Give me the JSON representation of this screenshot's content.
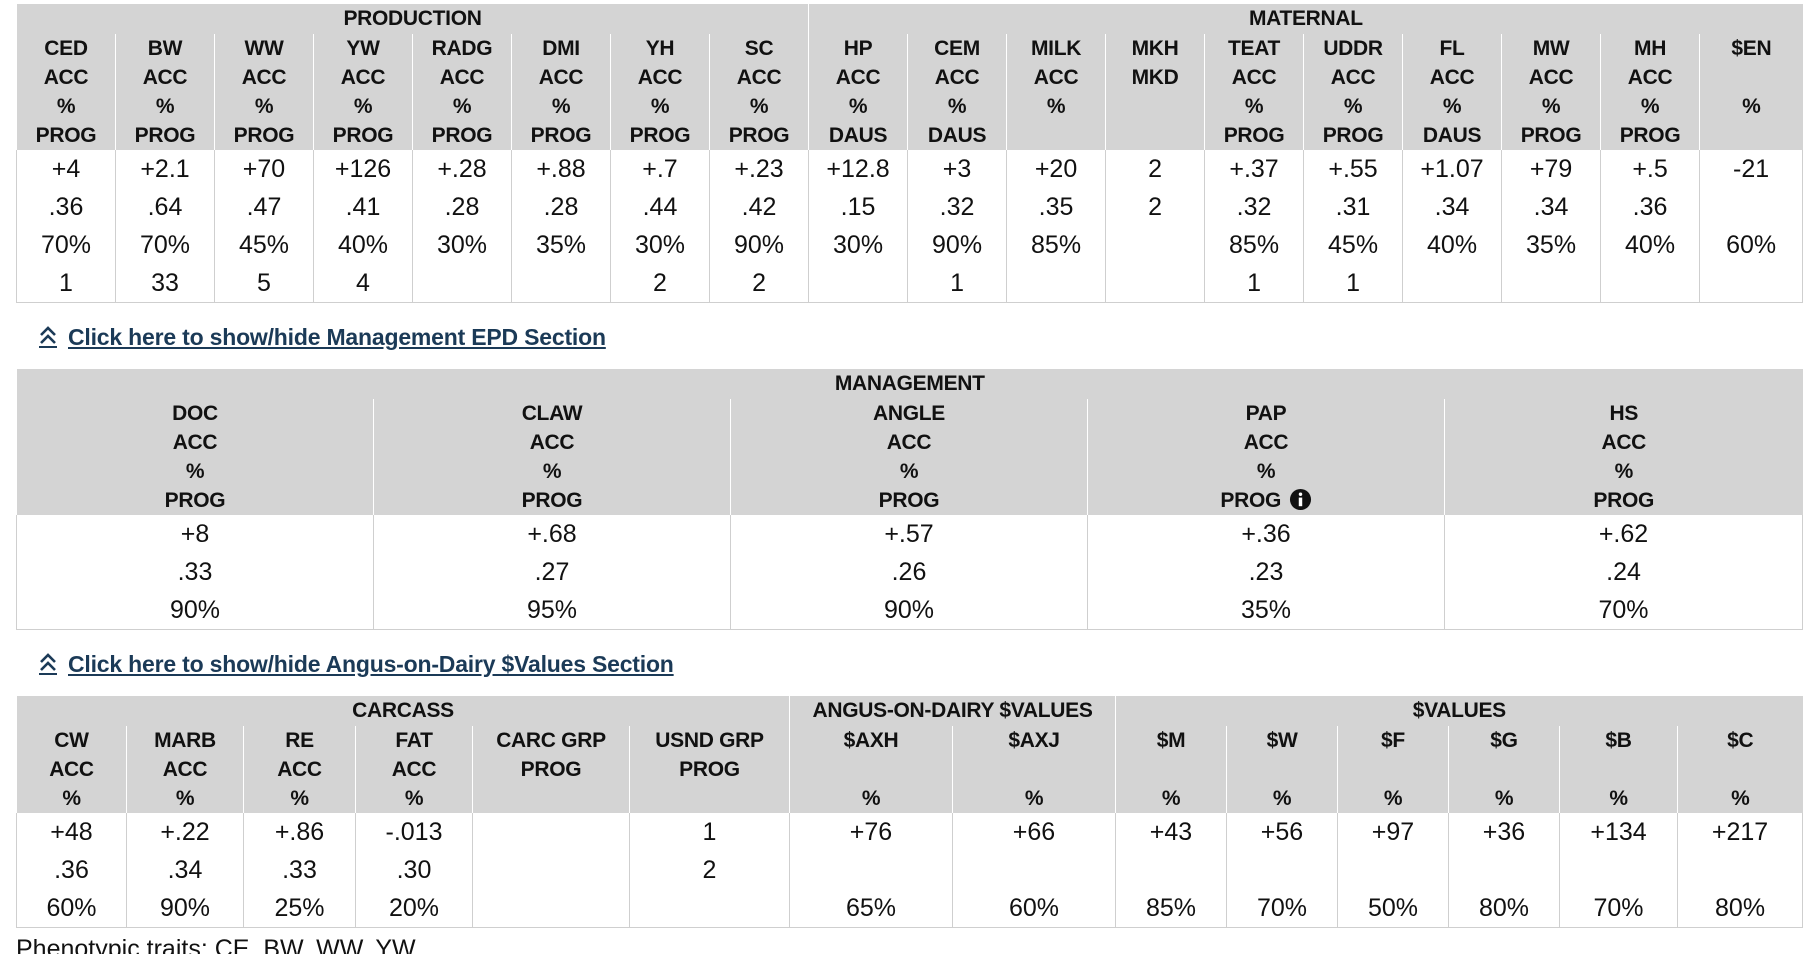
{
  "sections": {
    "epd": {
      "groups": [
        {
          "label": "PRODUCTION",
          "span": 8
        },
        {
          "label": "MATERNAL",
          "span": 10
        }
      ],
      "columns": [
        {
          "h": [
            "CED",
            "ACC",
            "%",
            "PROG"
          ],
          "v": [
            "+4",
            ".36",
            "70%",
            "1"
          ]
        },
        {
          "h": [
            "BW",
            "ACC",
            "%",
            "PROG"
          ],
          "v": [
            "+2.1",
            ".64",
            "70%",
            "33"
          ]
        },
        {
          "h": [
            "WW",
            "ACC",
            "%",
            "PROG"
          ],
          "v": [
            "+70",
            ".47",
            "45%",
            "5"
          ]
        },
        {
          "h": [
            "YW",
            "ACC",
            "%",
            "PROG"
          ],
          "v": [
            "+126",
            ".41",
            "40%",
            "4"
          ]
        },
        {
          "h": [
            "RADG",
            "ACC",
            "%",
            "PROG"
          ],
          "v": [
            "+.28",
            ".28",
            "30%",
            ""
          ]
        },
        {
          "h": [
            "DMI",
            "ACC",
            "%",
            "PROG"
          ],
          "v": [
            "+.88",
            ".28",
            "35%",
            ""
          ]
        },
        {
          "h": [
            "YH",
            "ACC",
            "%",
            "PROG"
          ],
          "v": [
            "+.7",
            ".44",
            "30%",
            "2"
          ]
        },
        {
          "h": [
            "SC",
            "ACC",
            "%",
            "PROG"
          ],
          "v": [
            "+.23",
            ".42",
            "90%",
            "2"
          ]
        },
        {
          "h": [
            "HP",
            "ACC",
            "%",
            "DAUS"
          ],
          "v": [
            "+12.8",
            ".15",
            "30%",
            ""
          ]
        },
        {
          "h": [
            "CEM",
            "ACC",
            "%",
            "DAUS"
          ],
          "v": [
            "+3",
            ".32",
            "90%",
            "1"
          ]
        },
        {
          "h": [
            "MILK",
            "ACC",
            "%",
            ""
          ],
          "v": [
            "+20",
            ".35",
            "85%",
            ""
          ]
        },
        {
          "h": [
            "MKH",
            "MKD",
            "",
            ""
          ],
          "v": [
            "2",
            "2",
            "",
            ""
          ]
        },
        {
          "h": [
            "TEAT",
            "ACC",
            "%",
            "PROG"
          ],
          "v": [
            "+.37",
            ".32",
            "85%",
            "1"
          ]
        },
        {
          "h": [
            "UDDR",
            "ACC",
            "%",
            "PROG"
          ],
          "v": [
            "+.55",
            ".31",
            "45%",
            "1"
          ]
        },
        {
          "h": [
            "FL",
            "ACC",
            "%",
            "DAUS"
          ],
          "v": [
            "+1.07",
            ".34",
            "40%",
            ""
          ]
        },
        {
          "h": [
            "MW",
            "ACC",
            "%",
            "PROG"
          ],
          "v": [
            "+79",
            ".34",
            "35%",
            ""
          ]
        },
        {
          "h": [
            "MH",
            "ACC",
            "%",
            "PROG"
          ],
          "v": [
            "+.5",
            ".36",
            "40%",
            ""
          ]
        },
        {
          "h": [
            "$EN",
            "",
            "%",
            ""
          ],
          "v": [
            "-21",
            "",
            "60%",
            ""
          ]
        }
      ]
    },
    "management_toggle": "Click here to show/hide Management EPD Section",
    "management": {
      "groups": [
        {
          "label": "MANAGEMENT",
          "span": 5
        }
      ],
      "columns": [
        {
          "h": [
            "DOC",
            "ACC",
            "%",
            "PROG"
          ],
          "v": [
            "+8",
            ".33",
            "90%"
          ]
        },
        {
          "h": [
            "CLAW",
            "ACC",
            "%",
            "PROG"
          ],
          "v": [
            "+.68",
            ".27",
            "95%"
          ]
        },
        {
          "h": [
            "ANGLE",
            "ACC",
            "%",
            "PROG"
          ],
          "v": [
            "+.57",
            ".26",
            "90%"
          ]
        },
        {
          "h": [
            "PAP",
            "ACC",
            "%",
            "PROG"
          ],
          "v": [
            "+.36",
            ".23",
            "35%"
          ],
          "info": true
        },
        {
          "h": [
            "HS",
            "ACC",
            "%",
            "PROG"
          ],
          "v": [
            "+.62",
            ".24",
            "70%"
          ]
        }
      ]
    },
    "dairy_toggle": "Click here to show/hide Angus-on-Dairy $Values Section",
    "values": {
      "groups": [
        {
          "label": "CARCASS",
          "span": 6
        },
        {
          "label": "ANGUS-ON-DAIRY $VALUES",
          "span": 2
        },
        {
          "label": "$VALUES",
          "span": 6
        }
      ],
      "columns": [
        {
          "h": [
            "CW",
            "ACC",
            "%"
          ],
          "v": [
            "+48",
            ".36",
            "60%"
          ]
        },
        {
          "h": [
            "MARB",
            "ACC",
            "%"
          ],
          "v": [
            "+.22",
            ".34",
            "90%"
          ]
        },
        {
          "h": [
            "RE",
            "ACC",
            "%"
          ],
          "v": [
            "+.86",
            ".33",
            "25%"
          ]
        },
        {
          "h": [
            "FAT",
            "ACC",
            "%"
          ],
          "v": [
            "-.013",
            ".30",
            "20%"
          ]
        },
        {
          "h": [
            "CARC GRP",
            "PROG",
            ""
          ],
          "v": [
            "",
            "",
            ""
          ]
        },
        {
          "h": [
            "USND GRP",
            "PROG",
            ""
          ],
          "v": [
            "1",
            "2",
            ""
          ]
        },
        {
          "h": [
            "$AXH",
            "",
            "%"
          ],
          "v": [
            "+76",
            "",
            "65%"
          ]
        },
        {
          "h": [
            "$AXJ",
            "",
            "%"
          ],
          "v": [
            "+66",
            "",
            "60%"
          ]
        },
        {
          "h": [
            "$M",
            "",
            "%"
          ],
          "v": [
            "+43",
            "",
            "85%"
          ]
        },
        {
          "h": [
            "$W",
            "",
            "%"
          ],
          "v": [
            "+56",
            "",
            "70%"
          ]
        },
        {
          "h": [
            "$F",
            "",
            "%"
          ],
          "v": [
            "+97",
            "",
            "50%"
          ]
        },
        {
          "h": [
            "$G",
            "",
            "%"
          ],
          "v": [
            "+36",
            "",
            "80%"
          ]
        },
        {
          "h": [
            "$B",
            "",
            "%"
          ],
          "v": [
            "+134",
            "",
            "70%"
          ]
        },
        {
          "h": [
            "$C",
            "",
            "%"
          ],
          "v": [
            "+217",
            "",
            "80%"
          ]
        }
      ]
    },
    "footer": "Phenotypic traits: CE, BW, WW, YW"
  },
  "colors": {
    "header_bg": "#d4d4d4",
    "link": "#1b3a57",
    "text": "#111111"
  },
  "icons": {
    "toggle": "double-chevron-up-icon",
    "info": "info-circle-icon"
  }
}
